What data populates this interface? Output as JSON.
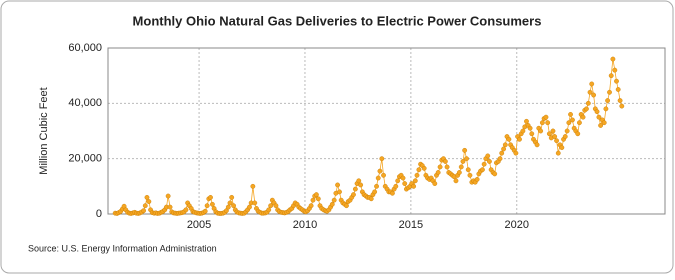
{
  "chart_data": {
    "type": "line",
    "title": "Monthly Ohio Natural Gas Deliveries to Electric Power Consumers",
    "y_label": "Million Cubic Feet",
    "source": "Source: U.S. Energy Information Administration",
    "xlim": [
      2000.7,
      2027.0
    ],
    "xticks": [
      2005,
      2010,
      2015,
      2020
    ],
    "ylim": [
      0,
      60000
    ],
    "yticks": [
      0,
      {
        "value": 20000,
        "label": "20,000"
      },
      {
        "value": 40000,
        "label": "40,000"
      },
      {
        "value": 60000,
        "label": "60,000"
      }
    ],
    "grid": true,
    "x": [
      2001.04,
      2001.13,
      2001.21,
      2001.29,
      2001.38,
      2001.46,
      2001.54,
      2001.63,
      2001.71,
      2001.79,
      2001.88,
      2001.96,
      2002.04,
      2002.13,
      2002.21,
      2002.29,
      2002.38,
      2002.46,
      2002.54,
      2002.63,
      2002.71,
      2002.79,
      2002.88,
      2002.96,
      2003.04,
      2003.13,
      2003.21,
      2003.29,
      2003.38,
      2003.46,
      2003.54,
      2003.63,
      2003.71,
      2003.79,
      2003.88,
      2003.96,
      2004.04,
      2004.13,
      2004.21,
      2004.29,
      2004.38,
      2004.46,
      2004.54,
      2004.63,
      2004.71,
      2004.79,
      2004.88,
      2004.96,
      2005.04,
      2005.13,
      2005.21,
      2005.29,
      2005.38,
      2005.46,
      2005.54,
      2005.63,
      2005.71,
      2005.79,
      2005.88,
      2005.96,
      2006.04,
      2006.13,
      2006.21,
      2006.29,
      2006.38,
      2006.46,
      2006.54,
      2006.63,
      2006.71,
      2006.79,
      2006.88,
      2006.96,
      2007.04,
      2007.13,
      2007.21,
      2007.29,
      2007.38,
      2007.46,
      2007.54,
      2007.63,
      2007.71,
      2007.79,
      2007.88,
      2007.96,
      2008.04,
      2008.13,
      2008.21,
      2008.29,
      2008.38,
      2008.46,
      2008.54,
      2008.63,
      2008.71,
      2008.79,
      2008.88,
      2008.96,
      2009.04,
      2009.13,
      2009.21,
      2009.29,
      2009.38,
      2009.46,
      2009.54,
      2009.63,
      2009.71,
      2009.79,
      2009.88,
      2009.96,
      2010.04,
      2010.13,
      2010.21,
      2010.29,
      2010.38,
      2010.46,
      2010.54,
      2010.63,
      2010.71,
      2010.79,
      2010.88,
      2010.96,
      2011.04,
      2011.13,
      2011.21,
      2011.29,
      2011.38,
      2011.46,
      2011.54,
      2011.63,
      2011.71,
      2011.79,
      2011.88,
      2011.96,
      2012.04,
      2012.13,
      2012.21,
      2012.29,
      2012.38,
      2012.46,
      2012.54,
      2012.63,
      2012.71,
      2012.79,
      2012.88,
      2012.96,
      2013.04,
      2013.13,
      2013.21,
      2013.29,
      2013.38,
      2013.46,
      2013.54,
      2013.63,
      2013.71,
      2013.79,
      2013.88,
      2013.96,
      2014.04,
      2014.13,
      2014.21,
      2014.29,
      2014.38,
      2014.46,
      2014.54,
      2014.63,
      2014.71,
      2014.79,
      2014.88,
      2014.96,
      2015.04,
      2015.13,
      2015.21,
      2015.29,
      2015.38,
      2015.46,
      2015.54,
      2015.63,
      2015.71,
      2015.79,
      2015.88,
      2015.96,
      2016.04,
      2016.13,
      2016.21,
      2016.29,
      2016.38,
      2016.46,
      2016.54,
      2016.63,
      2016.71,
      2016.79,
      2016.88,
      2016.96,
      2017.04,
      2017.13,
      2017.21,
      2017.29,
      2017.38,
      2017.46,
      2017.54,
      2017.63,
      2017.71,
      2017.79,
      2017.88,
      2017.96,
      2018.04,
      2018.13,
      2018.21,
      2018.29,
      2018.38,
      2018.46,
      2018.54,
      2018.63,
      2018.71,
      2018.79,
      2018.88,
      2018.96,
      2019.04,
      2019.13,
      2019.21,
      2019.29,
      2019.38,
      2019.46,
      2019.54,
      2019.63,
      2019.71,
      2019.79,
      2019.88,
      2019.96,
      2020.04,
      2020.13,
      2020.21,
      2020.29,
      2020.38,
      2020.46,
      2020.54,
      2020.63,
      2020.71,
      2020.79,
      2020.88,
      2020.96,
      2021.04,
      2021.13,
      2021.21,
      2021.29,
      2021.38,
      2021.46,
      2021.54,
      2021.63,
      2021.71,
      2021.79,
      2021.88,
      2021.96,
      2022.04,
      2022.13,
      2022.21,
      2022.29,
      2022.38,
      2022.46,
      2022.54,
      2022.63,
      2022.71,
      2022.79,
      2022.88,
      2022.96,
      2023.04,
      2023.13,
      2023.21,
      2023.29,
      2023.38,
      2023.46,
      2023.54,
      2023.63,
      2023.71,
      2023.79,
      2023.88,
      2023.96,
      2024.04,
      2024.13,
      2024.21,
      2024.29,
      2024.38,
      2024.46,
      2024.54,
      2024.63,
      2024.71,
      2024.79,
      2024.88,
      2024.96
    ],
    "series": [
      {
        "color": "#f5a623",
        "values": [
          300,
          200,
          500,
          900,
          1800,
          2800,
          1500,
          600,
          300,
          200,
          400,
          600,
          300,
          200,
          400,
          700,
          1200,
          3000,
          6000,
          4500,
          1500,
          500,
          300,
          400,
          200,
          300,
          600,
          900,
          1500,
          2500,
          6500,
          2500,
          800,
          400,
          300,
          200,
          300,
          400,
          500,
          800,
          1500,
          4000,
          3000,
          2000,
          900,
          600,
          400,
          300,
          200,
          300,
          500,
          1000,
          3000,
          5500,
          6000,
          3500,
          2000,
          800,
          300,
          200,
          200,
          300,
          600,
          1200,
          2500,
          4000,
          6000,
          3000,
          1500,
          700,
          400,
          300,
          200,
          300,
          800,
          1500,
          2500,
          4000,
          10000,
          4000,
          2000,
          1000,
          600,
          300,
          300,
          400,
          700,
          1500,
          3000,
          5000,
          4000,
          3000,
          1500,
          900,
          600,
          500,
          400,
          600,
          900,
          1500,
          2000,
          3000,
          4000,
          3500,
          2500,
          2000,
          1500,
          1000,
          800,
          1200,
          2000,
          3000,
          5000,
          6500,
          7000,
          5500,
          3000,
          2000,
          1500,
          1200,
          1000,
          1500,
          2500,
          3500,
          5000,
          7500,
          10500,
          8000,
          5000,
          4000,
          3500,
          3000,
          4500,
          5000,
          6000,
          7000,
          9000,
          11000,
          12000,
          10500,
          8000,
          7000,
          6500,
          6000,
          6000,
          5500,
          7000,
          8000,
          10000,
          13000,
          15500,
          20000,
          14000,
          10000,
          9000,
          8000,
          8000,
          7500,
          9000,
          10000,
          12000,
          13500,
          14000,
          13000,
          11000,
          9000,
          9500,
          10000,
          11000,
          10000,
          12000,
          14000,
          16000,
          18000,
          17500,
          16500,
          14000,
          13000,
          12500,
          13000,
          12000,
          11000,
          14000,
          15000,
          17000,
          19500,
          20000,
          19000,
          17000,
          15000,
          14500,
          14000,
          13500,
          12000,
          14000,
          15000,
          17000,
          19000,
          23000,
          20000,
          16000,
          14000,
          11500,
          12000,
          11500,
          12500,
          14500,
          15500,
          16000,
          18000,
          20000,
          21000,
          19000,
          16000,
          15000,
          14500,
          18500,
          19000,
          20000,
          22000,
          23500,
          25000,
          28000,
          27000,
          25000,
          24000,
          23000,
          22000,
          28000,
          27000,
          29000,
          30000,
          31500,
          33500,
          32000,
          31000,
          29000,
          27000,
          26000,
          25000,
          31000,
          30000,
          33000,
          34500,
          35000,
          33000,
          29000,
          27500,
          30000,
          28000,
          26500,
          22000,
          25000,
          24000,
          27000,
          28000,
          30000,
          33000,
          36000,
          34000,
          31000,
          30000,
          29000,
          33000,
          36000,
          35000,
          37500,
          38000,
          40000,
          44000,
          47000,
          43000,
          38000,
          37000,
          35000,
          32000,
          34000,
          33000,
          38000,
          41000,
          44000,
          50000,
          56000,
          52000,
          48000,
          45000,
          41000,
          39000
        ]
      }
    ]
  }
}
